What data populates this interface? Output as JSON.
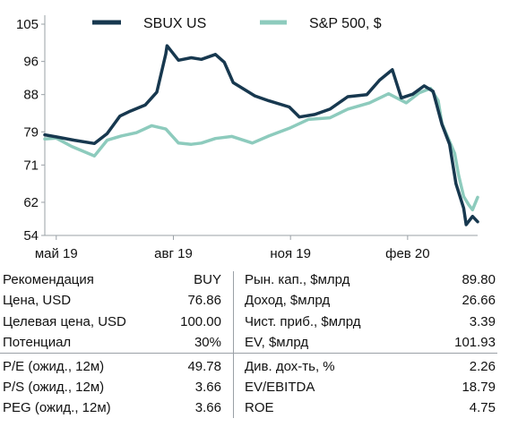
{
  "chart_data": {
    "type": "line",
    "x_start": "2019-04-22",
    "x_end": "2020-03-27",
    "xticks": [
      {
        "date": "2019-05-01",
        "label": "май 19"
      },
      {
        "date": "2019-08-01",
        "label": "авг 19"
      },
      {
        "date": "2019-11-01",
        "label": "ноя 19"
      },
      {
        "date": "2020-02-01",
        "label": "фев 20"
      }
    ],
    "yticks": [
      105,
      96,
      88,
      79,
      71,
      62,
      54
    ],
    "ylim": [
      54,
      105
    ],
    "legend_position": "top",
    "series": [
      {
        "name": "SBUX US",
        "color": "#17384f",
        "points": [
          [
            "2019-04-22",
            78.3
          ],
          [
            "2019-05-01",
            77.8
          ],
          [
            "2019-05-15",
            77.0
          ],
          [
            "2019-05-31",
            76.2
          ],
          [
            "2019-06-10",
            78.6
          ],
          [
            "2019-06-20",
            82.8
          ],
          [
            "2019-06-28",
            84.0
          ],
          [
            "2019-07-10",
            85.5
          ],
          [
            "2019-07-19",
            88.6
          ],
          [
            "2019-07-26",
            97.8
          ],
          [
            "2019-07-27",
            99.8
          ],
          [
            "2019-08-05",
            96.3
          ],
          [
            "2019-08-15",
            96.9
          ],
          [
            "2019-08-23",
            96.5
          ],
          [
            "2019-09-03",
            97.7
          ],
          [
            "2019-09-10",
            95.8
          ],
          [
            "2019-09-17",
            90.9
          ],
          [
            "2019-09-25",
            89.4
          ],
          [
            "2019-10-04",
            87.7
          ],
          [
            "2019-10-15",
            86.5
          ],
          [
            "2019-10-31",
            85.0
          ],
          [
            "2019-11-08",
            82.6
          ],
          [
            "2019-11-20",
            83.2
          ],
          [
            "2019-12-02",
            84.5
          ],
          [
            "2019-12-16",
            87.5
          ],
          [
            "2019-12-31",
            88.0
          ],
          [
            "2020-01-10",
            91.5
          ],
          [
            "2020-01-20",
            94.0
          ],
          [
            "2020-01-27",
            87.2
          ],
          [
            "2020-02-05",
            88.1
          ],
          [
            "2020-02-14",
            90.1
          ],
          [
            "2020-02-21",
            88.8
          ],
          [
            "2020-02-28",
            80.8
          ],
          [
            "2020-03-05",
            76.0
          ],
          [
            "2020-03-10",
            66.5
          ],
          [
            "2020-03-16",
            60.6
          ],
          [
            "2020-03-18",
            56.6
          ],
          [
            "2020-03-23",
            58.6
          ],
          [
            "2020-03-27",
            57.3
          ]
        ]
      },
      {
        "name": "S&P 500, $",
        "color": "#8dcbbd",
        "points": [
          [
            "2019-04-22",
            77.3
          ],
          [
            "2019-05-01",
            77.5
          ],
          [
            "2019-05-13",
            75.5
          ],
          [
            "2019-05-31",
            73.2
          ],
          [
            "2019-06-10",
            77.0
          ],
          [
            "2019-06-21",
            78.0
          ],
          [
            "2019-07-03",
            78.8
          ],
          [
            "2019-07-15",
            80.5
          ],
          [
            "2019-07-26",
            79.7
          ],
          [
            "2019-08-05",
            76.3
          ],
          [
            "2019-08-15",
            76.0
          ],
          [
            "2019-08-23",
            76.3
          ],
          [
            "2019-09-03",
            77.4
          ],
          [
            "2019-09-16",
            77.9
          ],
          [
            "2019-10-02",
            76.3
          ],
          [
            "2019-10-15",
            78.0
          ],
          [
            "2019-11-01",
            80.0
          ],
          [
            "2019-11-15",
            82.0
          ],
          [
            "2019-12-02",
            82.4
          ],
          [
            "2019-12-16",
            84.5
          ],
          [
            "2020-01-02",
            86.0
          ],
          [
            "2020-01-17",
            88.2
          ],
          [
            "2020-01-31",
            86.0
          ],
          [
            "2020-02-10",
            88.4
          ],
          [
            "2020-02-19",
            89.5
          ],
          [
            "2020-02-25",
            86.5
          ],
          [
            "2020-02-28",
            81.0
          ],
          [
            "2020-03-09",
            73.8
          ],
          [
            "2020-03-12",
            68.6
          ],
          [
            "2020-03-16",
            63.4
          ],
          [
            "2020-03-20",
            61.4
          ],
          [
            "2020-03-23",
            60.2
          ],
          [
            "2020-03-27",
            63.2
          ]
        ]
      }
    ]
  },
  "table": {
    "left": [
      {
        "label": "Рекомендация",
        "value": "BUY"
      },
      {
        "label": "Цена, USD",
        "value": "76.86"
      },
      {
        "label": "Целевая цена, USD",
        "value": "100.00"
      },
      {
        "label": "Потенциал",
        "value": "30%"
      },
      {
        "label": "P/E (ожид., 12м)",
        "value": "49.78"
      },
      {
        "label": "P/S (ожид., 12м)",
        "value": "3.66"
      },
      {
        "label": "PEG (ожид., 12м)",
        "value": "3.66"
      }
    ],
    "right": [
      {
        "label": "Рын. кап., $млрд",
        "value": "89.80"
      },
      {
        "label": "Доход, $млрд",
        "value": "26.66"
      },
      {
        "label": "Чист. приб., $млрд",
        "value": "3.39"
      },
      {
        "label": "EV, $млрд",
        "value": "101.93"
      },
      {
        "label": "Див. дох-ть, %",
        "value": "2.26"
      },
      {
        "label": "EV/EBITDA",
        "value": "18.79"
      },
      {
        "label": "ROE",
        "value": "4.75"
      }
    ]
  }
}
